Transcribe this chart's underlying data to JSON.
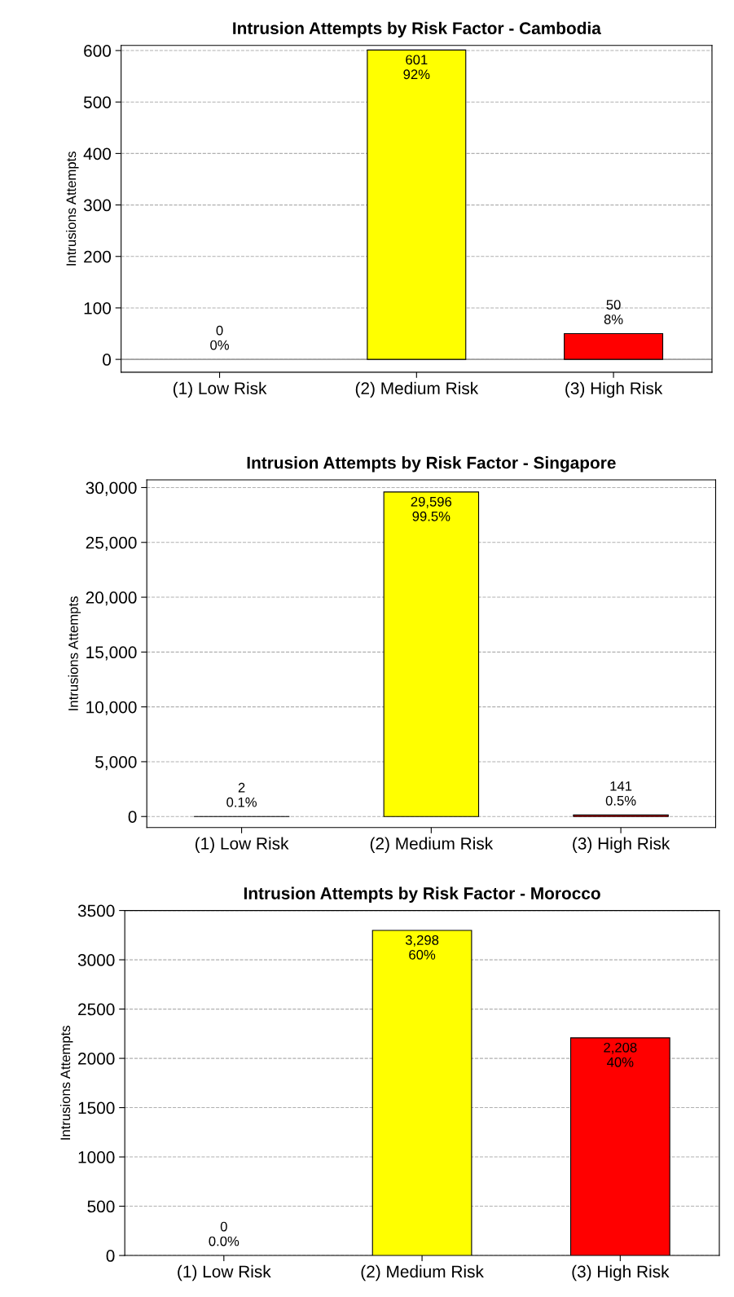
{
  "chart_data": [
    {
      "type": "bar",
      "title": "Intrusion Attempts by Risk Factor - Cambodia",
      "ylabel": "Intrusions Attempts",
      "categories": [
        "(1) Low Risk",
        "(2) Medium Risk",
        "(3) High Risk"
      ],
      "values": [
        0,
        601,
        50
      ],
      "colors": [
        "#00ff00",
        "#ffff00",
        "#ff0000"
      ],
      "value_labels": [
        "0\n0%",
        "601\n92%",
        "50\n8%"
      ],
      "ylim": [
        -25,
        610
      ],
      "yticks": [
        0,
        100,
        200,
        300,
        400,
        500,
        600
      ],
      "grid": "y",
      "ref_lines": [
        {
          "axis": "y",
          "value": 0,
          "color": "#a0a0a0"
        }
      ]
    },
    {
      "type": "bar",
      "title": "Intrusion Attempts by Risk Factor - Singapore",
      "ylabel": "Intrusions Attempts",
      "categories": [
        "(1) Low Risk",
        "(2) Medium Risk",
        "(3) High Risk"
      ],
      "values": [
        2,
        29596,
        141
      ],
      "colors": [
        "#00ff00",
        "#ffff00",
        "#ff0000"
      ],
      "value_labels": [
        "2\n0.1%",
        "29,596\n99.5%",
        "141\n0.5%"
      ],
      "ylim": [
        -1000,
        30700
      ],
      "yticks": [
        0,
        {
          "value": 5000,
          "label": "5,000"
        },
        {
          "value": 10000,
          "label": "10,000"
        },
        {
          "value": 15000,
          "label": "15,000"
        },
        {
          "value": 20000,
          "label": "20,000"
        },
        {
          "value": 25000,
          "label": "25,000"
        },
        {
          "value": 30000,
          "label": "30,000"
        }
      ],
      "grid": "y"
    },
    {
      "type": "bar",
      "title": "Intrusion Attempts by Risk Factor - Morocco",
      "ylabel": "Intrusions Attempts",
      "categories": [
        "(1) Low Risk",
        "(2) Medium Risk",
        "(3) High Risk"
      ],
      "values": [
        0,
        3298,
        2208
      ],
      "colors": [
        "#00ff00",
        "#ffff00",
        "#ff0000"
      ],
      "value_labels": [
        "0\n0.0%",
        "3,298\n60%",
        "2,208\n40%"
      ],
      "ylim": [
        0,
        3500
      ],
      "yticks": [
        0,
        500,
        1000,
        1500,
        2000,
        2500,
        3000,
        3500
      ],
      "grid": "y"
    }
  ]
}
